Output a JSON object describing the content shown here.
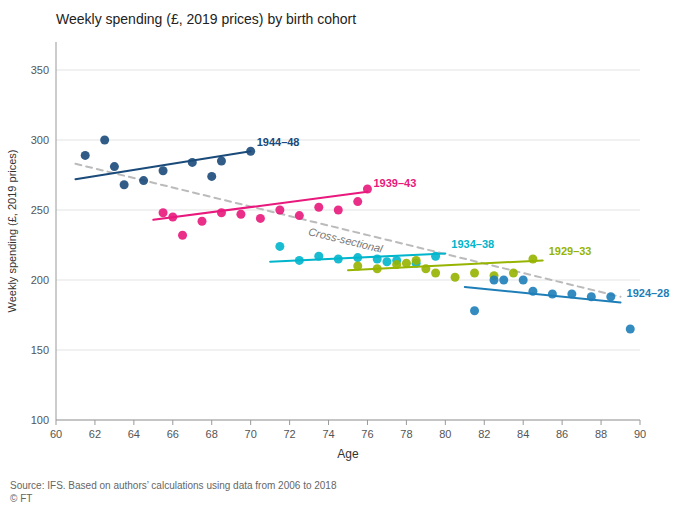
{
  "chart_data": {
    "type": "scatter",
    "title": "Weekly spending (£, 2019 prices) by birth cohort",
    "x_label": "Age",
    "y_label": "Weekly spending (£, 2019 prices)",
    "source": "Source: IFS. Based on authors’ calculations using data from 2006 to 2018",
    "note": "© FT",
    "xlim": [
      60,
      90
    ],
    "ylim": [
      100,
      370
    ],
    "xticks": [
      60,
      62,
      64,
      66,
      68,
      70,
      72,
      74,
      76,
      78,
      80,
      82,
      84,
      86,
      88,
      90
    ],
    "yticks": [
      100,
      150,
      200,
      250,
      300,
      350
    ],
    "grid": true,
    "series": [
      {
        "name": "1944–48",
        "type": "scatter",
        "marker": "circle",
        "color": "#1A4A7A",
        "x": [
          61.5,
          62.5,
          63.0,
          63.5,
          64.5,
          65.5,
          67.0,
          68.0,
          68.5,
          70.0
        ],
        "values": [
          289,
          300,
          281,
          268,
          271,
          278,
          284,
          274,
          285,
          292
        ],
        "trend": {
          "x": [
            61,
            70
          ],
          "values": [
            272,
            292
          ]
        }
      },
      {
        "name": "1939–43",
        "type": "scatter",
        "marker": "circle",
        "color": "#E8187C",
        "x": [
          65.5,
          66.0,
          66.5,
          67.5,
          68.5,
          69.5,
          70.5,
          71.5,
          72.5,
          73.5,
          74.5,
          75.5,
          76.0
        ],
        "values": [
          248,
          245,
          232,
          242,
          248,
          247,
          244,
          250,
          246,
          252,
          250,
          256,
          265
        ],
        "trend": {
          "x": [
            65,
            76
          ],
          "values": [
            243,
            263
          ]
        }
      },
      {
        "name": "1934–38",
        "type": "scatter",
        "marker": "circle",
        "color": "#00B5CC",
        "x": [
          71.5,
          72.5,
          73.5,
          74.5,
          75.5,
          76.5,
          77.0,
          77.5,
          78.5,
          79.5
        ],
        "values": [
          224,
          214,
          217,
          215,
          216,
          215,
          213,
          214,
          212,
          217
        ],
        "trend": {
          "x": [
            71,
            80
          ],
          "values": [
            213,
            219
          ]
        }
      },
      {
        "name": "1929–33",
        "type": "scatter",
        "marker": "circle",
        "color": "#96B400",
        "x": [
          75.5,
          76.5,
          77.5,
          78.0,
          78.5,
          79.0,
          79.5,
          80.5,
          81.5,
          82.5,
          83.5,
          84.5
        ],
        "values": [
          210,
          208,
          211,
          212,
          214,
          208,
          205,
          202,
          205,
          203,
          205,
          215
        ],
        "trend": {
          "x": [
            75,
            85
          ],
          "values": [
            207,
            214
          ]
        }
      },
      {
        "name": "1924–28",
        "type": "scatter",
        "marker": "circle",
        "color": "#1E7EB8",
        "x": [
          81.5,
          82.5,
          83.0,
          84.0,
          84.5,
          85.5,
          86.5,
          87.5,
          88.5,
          89.5
        ],
        "values": [
          178,
          200,
          200,
          200,
          192,
          190,
          190,
          188,
          188,
          165
        ],
        "trend": {
          "x": [
            81,
            89
          ],
          "values": [
            195,
            184
          ]
        }
      },
      {
        "name": "Cross-sectional",
        "type": "line",
        "line_style": "dashed",
        "color": "#BBBBBB",
        "x": [
          61,
          89
        ],
        "values": [
          283,
          188
        ]
      }
    ]
  }
}
